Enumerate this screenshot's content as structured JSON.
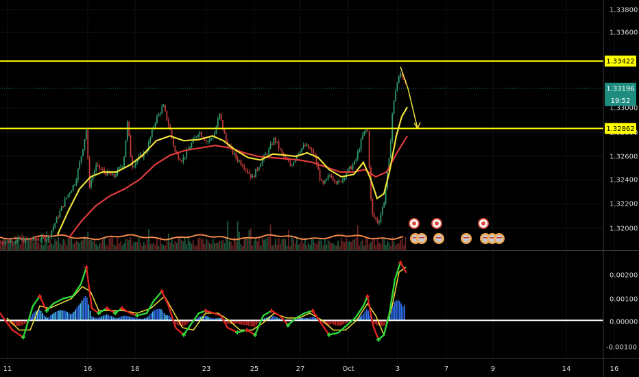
{
  "chart_data": [
    {
      "type": "candlestick",
      "title": "",
      "price_scale": {
        "ticks": [
          "1.33800",
          "1.33600",
          "1.33000",
          "1.32800",
          "1.32600",
          "1.32400",
          "1.32200",
          "1.32000"
        ],
        "ylim": [
          1.3185,
          1.3393
        ]
      },
      "x_ticks": [
        "11",
        "16",
        "18",
        "23",
        "25",
        "27",
        "Oct",
        "3",
        "7",
        "9",
        "14",
        "16"
      ],
      "horizontal_levels": [
        {
          "value": 1.33422,
          "label": "1.33422",
          "color": "#ffff00"
        },
        {
          "value": 1.32862,
          "label": "1.32862",
          "color": "#ffff00"
        }
      ],
      "current_price": {
        "value": 1.33196,
        "label": "1.33196",
        "countdown": "19:52",
        "color": "#1e8c7f"
      },
      "price_path": [
        [
          0,
          1.3192
        ],
        [
          70,
          1.3195
        ],
        [
          82,
          1.321
        ],
        [
          96,
          1.3228
        ],
        [
          110,
          1.3242
        ],
        [
          118,
          1.3262
        ],
        [
          126,
          1.3286
        ],
        [
          130,
          1.3238
        ],
        [
          140,
          1.3255
        ],
        [
          152,
          1.325
        ],
        [
          166,
          1.3246
        ],
        [
          180,
          1.3258
        ],
        [
          186,
          1.3292
        ],
        [
          192,
          1.3255
        ],
        [
          204,
          1.3262
        ],
        [
          214,
          1.3268
        ],
        [
          226,
          1.3292
        ],
        [
          238,
          1.3305
        ],
        [
          248,
          1.3285
        ],
        [
          256,
          1.3265
        ],
        [
          266,
          1.326
        ],
        [
          278,
          1.3272
        ],
        [
          290,
          1.3284
        ],
        [
          302,
          1.3275
        ],
        [
          312,
          1.328
        ],
        [
          320,
          1.3298
        ],
        [
          330,
          1.3275
        ],
        [
          344,
          1.3262
        ],
        [
          356,
          1.3255
        ],
        [
          368,
          1.3245
        ],
        [
          380,
          1.3258
        ],
        [
          392,
          1.3268
        ],
        [
          400,
          1.3278
        ],
        [
          412,
          1.3264
        ],
        [
          424,
          1.3255
        ],
        [
          436,
          1.3268
        ],
        [
          446,
          1.3272
        ],
        [
          458,
          1.3265
        ],
        [
          470,
          1.3238
        ],
        [
          482,
          1.3248
        ],
        [
          494,
          1.324
        ],
        [
          506,
          1.325
        ],
        [
          518,
          1.3258
        ],
        [
          530,
          1.3282
        ],
        [
          536,
          1.3286
        ],
        [
          542,
          1.3215
        ],
        [
          552,
          1.3208
        ],
        [
          560,
          1.3225
        ],
        [
          568,
          1.3262
        ],
        [
          572,
          1.3298
        ],
        [
          578,
          1.3322
        ],
        [
          584,
          1.3332
        ],
        [
          592,
          1.3325
        ]
      ],
      "ma_yellow": [
        [
          84,
          1.3198
        ],
        [
          100,
          1.3218
        ],
        [
          116,
          1.3236
        ],
        [
          132,
          1.3246
        ],
        [
          150,
          1.325
        ],
        [
          170,
          1.325
        ],
        [
          190,
          1.3256
        ],
        [
          208,
          1.3264
        ],
        [
          228,
          1.3276
        ],
        [
          248,
          1.328
        ],
        [
          268,
          1.3276
        ],
        [
          290,
          1.3277
        ],
        [
          310,
          1.328
        ],
        [
          326,
          1.3276
        ],
        [
          344,
          1.3268
        ],
        [
          362,
          1.3262
        ],
        [
          380,
          1.326
        ],
        [
          398,
          1.3265
        ],
        [
          416,
          1.3264
        ],
        [
          432,
          1.3263
        ],
        [
          448,
          1.3266
        ],
        [
          464,
          1.3262
        ],
        [
          480,
          1.3252
        ],
        [
          498,
          1.3246
        ],
        [
          516,
          1.3248
        ],
        [
          530,
          1.3258
        ],
        [
          540,
          1.3245
        ],
        [
          550,
          1.3228
        ],
        [
          560,
          1.3232
        ],
        [
          568,
          1.325
        ],
        [
          578,
          1.328
        ],
        [
          586,
          1.3296
        ],
        [
          594,
          1.3304
        ]
      ],
      "ma_red": [
        [
          100,
          1.3195
        ],
        [
          120,
          1.321
        ],
        [
          140,
          1.3222
        ],
        [
          160,
          1.323
        ],
        [
          182,
          1.3236
        ],
        [
          204,
          1.3244
        ],
        [
          226,
          1.3256
        ],
        [
          248,
          1.3264
        ],
        [
          270,
          1.3268
        ],
        [
          292,
          1.327
        ],
        [
          314,
          1.3272
        ],
        [
          336,
          1.327
        ],
        [
          356,
          1.3266
        ],
        [
          376,
          1.3263
        ],
        [
          396,
          1.3262
        ],
        [
          416,
          1.3261
        ],
        [
          436,
          1.326
        ],
        [
          456,
          1.3258
        ],
        [
          476,
          1.3254
        ],
        [
          496,
          1.325
        ],
        [
          516,
          1.325
        ],
        [
          532,
          1.3252
        ],
        [
          548,
          1.3246
        ],
        [
          564,
          1.325
        ],
        [
          578,
          1.3265
        ],
        [
          594,
          1.328
        ]
      ],
      "forecast_arrow": [
        [
          584,
          1.33375
        ],
        [
          595,
          1.33196
        ],
        [
          609,
          1.32862
        ]
      ],
      "oscillator": {
        "ticks": [
          "0.00200",
          "0.00100",
          "0.00000",
          "-0.00100"
        ],
        "ylim": [
          -0.00155,
          0.00288
        ],
        "zero": 0.0,
        "green_path": [
          [
            0,
            0.0003
          ],
          [
            18,
            -0.0004
          ],
          [
            34,
            -0.0007
          ],
          [
            48,
            0.0006
          ],
          [
            58,
            0.001
          ],
          [
            68,
            0.0004
          ],
          [
            78,
            0.0007
          ],
          [
            92,
            0.0009
          ],
          [
            106,
            0.001
          ],
          [
            118,
            0.0015
          ],
          [
            126,
            0.0022
          ],
          [
            134,
            0.0005
          ],
          [
            144,
            0.0003
          ],
          [
            156,
            0.0005
          ],
          [
            168,
            0.0003
          ],
          [
            178,
            0.0005
          ],
          [
            190,
            0.0003
          ],
          [
            200,
            0.0002
          ],
          [
            214,
            0.0003
          ],
          [
            224,
            0.0008
          ],
          [
            236,
            0.0012
          ],
          [
            246,
            0.0006
          ],
          [
            256,
            -0.0003
          ],
          [
            268,
            -0.0006
          ],
          [
            280,
            -0.0001
          ],
          [
            290,
            0.0003
          ],
          [
            300,
            0.0004
          ],
          [
            312,
            0.0003
          ],
          [
            322,
            0.0002
          ],
          [
            332,
            -0.0003
          ],
          [
            346,
            -0.0005
          ],
          [
            360,
            -0.0004
          ],
          [
            372,
            -0.0006
          ],
          [
            384,
            0.0002
          ],
          [
            396,
            0.0004
          ],
          [
            408,
            0.0002
          ],
          [
            420,
            -0.0002
          ],
          [
            432,
            0.0001
          ],
          [
            444,
            0.0003
          ],
          [
            456,
            0.0004
          ],
          [
            468,
            -0.0001
          ],
          [
            480,
            -0.0006
          ],
          [
            494,
            -0.0005
          ],
          [
            506,
            -0.0002
          ],
          [
            518,
            0.0001
          ],
          [
            530,
            0.0006
          ],
          [
            536,
            0.001
          ],
          [
            544,
            -0.0002
          ],
          [
            552,
            -0.0008
          ],
          [
            560,
            -0.0006
          ],
          [
            568,
            0.0003
          ],
          [
            576,
            0.0017
          ],
          [
            584,
            0.0024
          ],
          [
            592,
            0.002
          ]
        ],
        "yellow_path": [
          [
            10,
            0.0001
          ],
          [
            28,
            -0.0004
          ],
          [
            44,
            -0.0004
          ],
          [
            58,
            0.0006
          ],
          [
            72,
            0.0005
          ],
          [
            88,
            0.0007
          ],
          [
            104,
            0.0009
          ],
          [
            120,
            0.0014
          ],
          [
            132,
            0.0012
          ],
          [
            144,
            0.0004
          ],
          [
            160,
            0.0004
          ],
          [
            180,
            0.0004
          ],
          [
            200,
            0.0003
          ],
          [
            220,
            0.0005
          ],
          [
            240,
            0.001
          ],
          [
            252,
            0.0004
          ],
          [
            266,
            -0.0003
          ],
          [
            282,
            -0.0004
          ],
          [
            300,
            0.0003
          ],
          [
            318,
            0.0003
          ],
          [
            334,
            0.0
          ],
          [
            350,
            -0.0004
          ],
          [
            368,
            -0.0004
          ],
          [
            384,
            -0.0001
          ],
          [
            400,
            0.0003
          ],
          [
            418,
            0.0001
          ],
          [
            436,
            0.0001
          ],
          [
            452,
            0.0003
          ],
          [
            470,
            0.0
          ],
          [
            486,
            -0.0004
          ],
          [
            504,
            -0.0004
          ],
          [
            520,
            0.0
          ],
          [
            536,
            0.0007
          ],
          [
            548,
            0.0002
          ],
          [
            560,
            -0.0006
          ],
          [
            572,
            0.0006
          ],
          [
            582,
            0.002
          ],
          [
            592,
            0.0022
          ]
        ]
      }
    }
  ]
}
